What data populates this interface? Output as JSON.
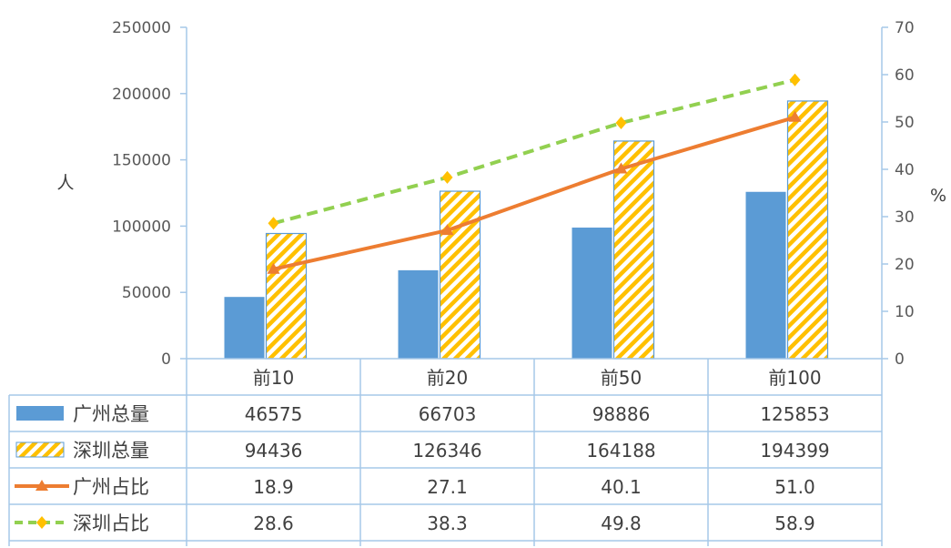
{
  "chart_data": {
    "type": "bar",
    "categories": [
      "前10",
      "前20",
      "前50",
      "前100"
    ],
    "y_left_label": "人",
    "y_right_label": "%",
    "y_left_ticks": [
      "0",
      "50000",
      "100000",
      "150000",
      "200000",
      "250000"
    ],
    "y_right_ticks": [
      "0",
      "10",
      "20",
      "30",
      "40",
      "50",
      "60",
      "70"
    ],
    "ylim_left": [
      0,
      250000
    ],
    "ylim_right": [
      0,
      70
    ],
    "series": [
      {
        "name": "广州总量",
        "kind": "bar",
        "axis": "left",
        "color": "#5b9bd5",
        "values": [
          46575,
          66703,
          98886,
          125853
        ],
        "labels": [
          "46575",
          "66703",
          "98886",
          "125853"
        ]
      },
      {
        "name": "深圳总量",
        "kind": "bar-hatched",
        "axis": "left",
        "color": "#ffc000",
        "edge": "#5b9bd5",
        "values": [
          94436,
          126346,
          164188,
          194399
        ],
        "labels": [
          "94436",
          "126346",
          "164188",
          "194399"
        ]
      },
      {
        "name": "广州占比",
        "kind": "line",
        "axis": "right",
        "color": "#ed7d31",
        "marker": "triangle",
        "values": [
          18.9,
          27.1,
          40.1,
          51.0
        ],
        "labels": [
          "18.9",
          "27.1",
          "40.1",
          "51.0"
        ]
      },
      {
        "name": "深圳占比",
        "kind": "line-dashed",
        "axis": "right",
        "color": "#92d050",
        "marker": "diamond",
        "marker_color": "#ffc000",
        "values": [
          28.6,
          38.3,
          49.8,
          58.9
        ],
        "labels": [
          "28.6",
          "38.3",
          "49.8",
          "58.9"
        ]
      }
    ],
    "grid": false,
    "legend": "data-table"
  }
}
